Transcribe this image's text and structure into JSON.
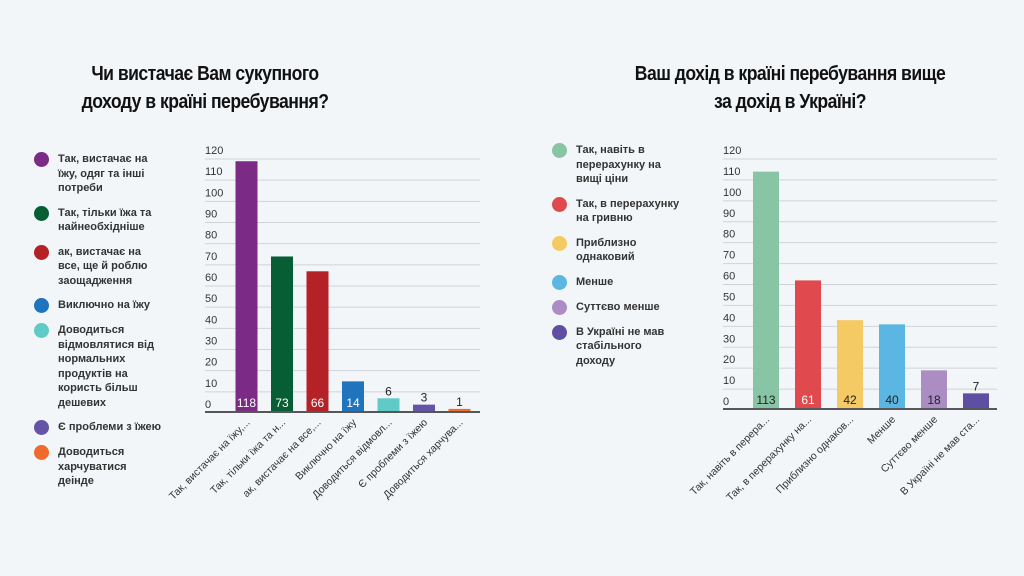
{
  "chart_data": [
    {
      "type": "bar",
      "title": "Чи вистачає Вам сукупного доходу в країні перебування?",
      "title_lines": [
        "Чи вистачає Вам сукупного",
        "доходу в країні перебування?"
      ],
      "categories": [
        "Так, вистачає на їжу,...",
        "Так, тільки їжа та н...",
        "ак, вистачає на все,...",
        "Виключно на їжу",
        "Доводиться відмовл...",
        "Є проблеми з їжею",
        "Доводиться харчува..."
      ],
      "legend": [
        "Так, вистачає на їжу, одяг та інші потреби",
        "Так, тільки їжа та найнеобхідніше",
        "ак, вистачає на все, ще й роблю заощадження",
        "Виключно на їжу",
        "Доводиться відмовлятися від нормальних продуктів на користь більш дешевих",
        "Є проблеми з їжею",
        "Доводиться харчуватися деінде"
      ],
      "values": [
        118,
        73,
        66,
        14,
        6,
        3,
        1
      ],
      "colors": [
        "#7b2a85",
        "#075e34",
        "#b42126",
        "#1f74bd",
        "#5fcac6",
        "#6453a7",
        "#f06a2c"
      ],
      "label_inside": [
        true,
        true,
        true,
        true,
        false,
        false,
        false
      ],
      "yticks": [
        0,
        10,
        20,
        30,
        40,
        50,
        60,
        70,
        80,
        90,
        100,
        110,
        120
      ],
      "ylim": [
        0,
        120
      ],
      "grid": true,
      "legend_position": "left"
    },
    {
      "type": "bar",
      "title": "Ваш дохід в країні перебування вище за дохід в Україні?",
      "title_lines": [
        "Ваш дохід в країні перебування вище",
        "за дохід в Україні?"
      ],
      "categories": [
        "Так, навіть в перера...",
        "Так, в перерахунку на...",
        "Приблизно однаков...",
        "Менше",
        "Суттєво менше",
        "В Україні не мав ста..."
      ],
      "legend": [
        "Так, навіть в перерахунку на вищі ціни",
        "Так, в перерахунку на гривню",
        "Приблизно однаковий",
        "Менше",
        "Суттєво менше",
        "В Україні не мав стабільного доходу"
      ],
      "values": [
        113,
        61,
        42,
        40,
        18,
        7
      ],
      "colors": [
        "#88c5a5",
        "#e04a4f",
        "#f3ca63",
        "#5bb6e3",
        "#ab8cc3",
        "#5e4fa2"
      ],
      "label_colors": [
        "#222222",
        "#ffffff",
        "#222222",
        "#222222",
        "#222222",
        "#222222"
      ],
      "label_inside": [
        true,
        true,
        true,
        true,
        true,
        false
      ],
      "yticks": [
        0,
        10,
        20,
        30,
        40,
        50,
        60,
        70,
        80,
        90,
        100,
        110,
        120
      ],
      "ylim": [
        0,
        120
      ],
      "grid": true,
      "legend_position": "left"
    }
  ]
}
